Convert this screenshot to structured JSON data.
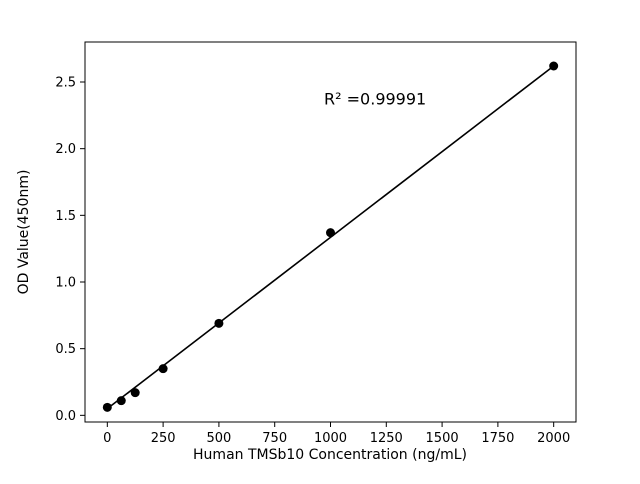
{
  "figure": {
    "background": "#ffffff"
  },
  "chart_data": {
    "type": "scatter",
    "x": [
      0,
      62.5,
      125,
      250,
      500,
      1000,
      2000
    ],
    "y": [
      0.06,
      0.11,
      0.17,
      0.35,
      0.69,
      1.37,
      2.62
    ],
    "line": {
      "x": [
        0,
        2000
      ],
      "y": [
        0.05,
        2.62
      ]
    },
    "xlabel": "Human TMSb10 Concentration (ng/mL)",
    "ylabel": "OD Value(450nm)",
    "annotation": "R² =0.99991",
    "annotation_x": 1200,
    "annotation_y": 2.33,
    "xticks": [
      0,
      250,
      500,
      750,
      1000,
      1250,
      1500,
      1750,
      2000
    ],
    "yticks": [
      0.0,
      0.5,
      1.0,
      1.5,
      2.0,
      2.5
    ],
    "xlim": [
      -100,
      2100
    ],
    "ylim": [
      -0.05,
      2.8
    ],
    "grid": false,
    "legend": "none",
    "marker_color": "#000000",
    "line_color": "#000000",
    "axis_color": "#000000"
  }
}
